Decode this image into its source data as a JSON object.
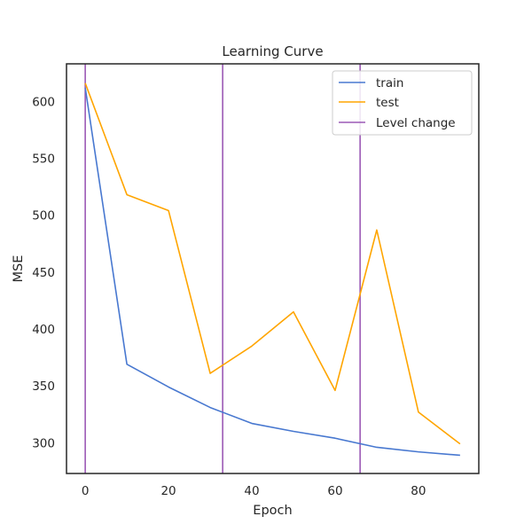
{
  "chart_data": {
    "type": "line",
    "title": "Learning Curve",
    "xlabel": "Epoch",
    "ylabel": "MSE",
    "xlim": [
      -4.5,
      94.5
    ],
    "ylim": [
      273,
      633
    ],
    "xticks": [
      0,
      20,
      40,
      60,
      80
    ],
    "yticks": [
      300,
      350,
      400,
      450,
      500,
      550,
      600
    ],
    "grid": false,
    "legend_position": "top-right",
    "x": [
      0,
      10,
      20,
      30,
      40,
      50,
      60,
      70,
      80,
      90
    ],
    "series": [
      {
        "name": "train",
        "color": "#4878d0",
        "values": [
          612,
          369,
          349,
          331,
          317,
          310,
          304,
          296,
          292,
          289
        ]
      },
      {
        "name": "test",
        "color": "#ffa500",
        "values": [
          616,
          518,
          504,
          361,
          385,
          415,
          346,
          487,
          327,
          299
        ]
      }
    ],
    "vlines": {
      "name": "Level change",
      "color": "#9b59b6",
      "x": [
        0,
        33,
        66
      ]
    }
  }
}
